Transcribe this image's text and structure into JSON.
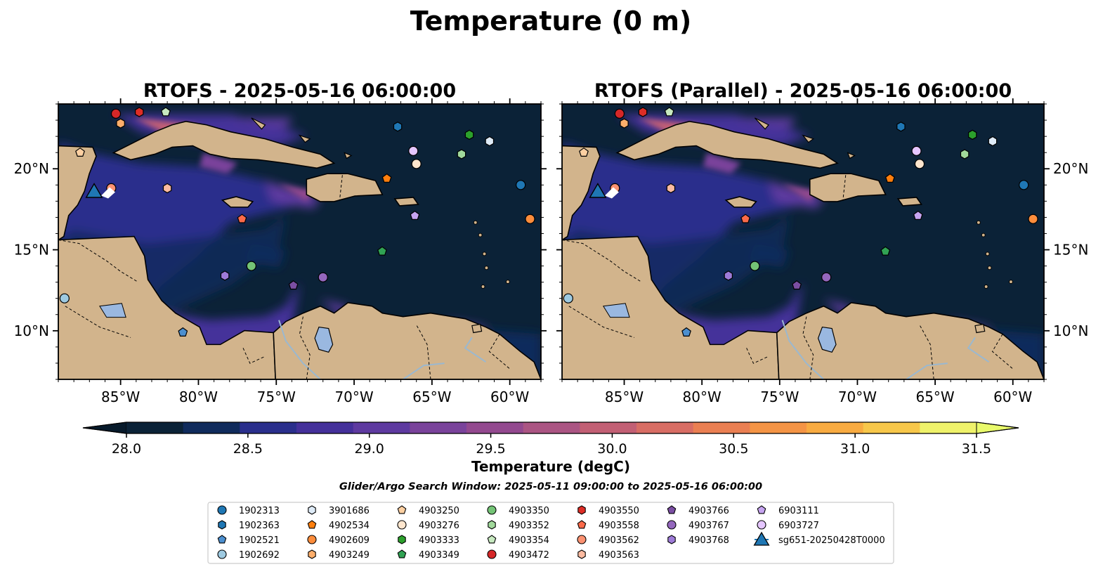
{
  "figure": {
    "suptitle": "Temperature (0 m)",
    "search_window": "Glider/Argo Search Window: 2025-05-11 09:00:00 to 2025-05-16 06:00:00"
  },
  "chart_data": [
    {
      "type": "heatmap",
      "title": "RTOFS - 2025-05-16 06:00:00",
      "x_range": [
        -89,
        -58
      ],
      "y_range": [
        7,
        24
      ],
      "x_ticks": [
        -85,
        -80,
        -75,
        -70,
        -65,
        -60
      ],
      "x_tick_labels": [
        "85°W",
        "80°W",
        "75°W",
        "70°W",
        "65°W",
        "60°W"
      ],
      "y_ticks": [
        10,
        15,
        20
      ],
      "y_tick_labels": [
        "10°N",
        "15°N",
        "20°N"
      ],
      "y_labels_side": "left"
    },
    {
      "type": "heatmap",
      "title": "RTOFS (Parallel) - 2025-05-16 06:00:00",
      "x_range": [
        -89,
        -58
      ],
      "y_range": [
        7,
        24
      ],
      "x_ticks": [
        -85,
        -80,
        -75,
        -70,
        -65,
        -60
      ],
      "x_tick_labels": [
        "85°W",
        "80°W",
        "75°W",
        "70°W",
        "65°W",
        "60°W"
      ],
      "y_ticks": [
        10,
        15,
        20
      ],
      "y_tick_labels": [
        "10°N",
        "15°N",
        "20°N"
      ],
      "y_labels_side": "right"
    }
  ],
  "colorbar": {
    "label": "Temperature (degC)",
    "min": 28.0,
    "max": 31.5,
    "ticks": [
      28.0,
      28.5,
      29.0,
      29.5,
      30.0,
      30.5,
      31.0,
      31.5
    ],
    "tick_labels": [
      "28.0",
      "28.5",
      "29.0",
      "29.5",
      "30.0",
      "30.5",
      "31.0",
      "31.5"
    ],
    "colors": [
      "#0b2237",
      "#102b5c",
      "#2a2f8c",
      "#44309a",
      "#5e3aa0",
      "#7a439b",
      "#93498f",
      "#ab5583",
      "#c25f74",
      "#d86d64",
      "#ea7f52",
      "#f49445",
      "#f8ab41",
      "#f7c74a",
      "#eff26a"
    ],
    "extend_low_color": "#071a2b",
    "extend_high_color": "#e9fa6b"
  },
  "colors": {
    "land": "#d2b48c",
    "ocean_deep": "#0b2237",
    "lake": "#9ab8e0",
    "river": "#9ab8d0",
    "coast": "#000000"
  },
  "floats": [
    {
      "id": "1902313",
      "marker": "circle",
      "color": "#1f77b4",
      "lon": -59.3,
      "lat": 19.0
    },
    {
      "id": "1902363",
      "marker": "hexagon",
      "color": "#1f77b4",
      "lon": -67.2,
      "lat": 22.6
    },
    {
      "id": "1902521",
      "marker": "pentagon",
      "color": "#4c8fcf",
      "lon": -81.0,
      "lat": 9.9
    },
    {
      "id": "1902692",
      "marker": "circle",
      "color": "#9ecae1",
      "lon": -88.6,
      "lat": 12.0
    },
    {
      "id": "3901686",
      "marker": "hexagon",
      "color": "#deebf7",
      "lon": -61.3,
      "lat": 21.7
    },
    {
      "id": "4902534",
      "marker": "pentagon",
      "color": "#ff7f0e",
      "lon": -67.9,
      "lat": 19.4
    },
    {
      "id": "4902609",
      "marker": "circle",
      "color": "#fd8d3c",
      "lon": -58.7,
      "lat": 16.9
    },
    {
      "id": "4903249",
      "marker": "hexagon",
      "color": "#fdae6b",
      "lon": -85.0,
      "lat": 22.8
    },
    {
      "id": "4903250",
      "marker": "pentagon",
      "color": "#fdd0a2",
      "lon": -87.6,
      "lat": 21.0
    },
    {
      "id": "4903276",
      "marker": "circle",
      "color": "#fee6ce",
      "lon": -66.0,
      "lat": 20.3
    },
    {
      "id": "4903333",
      "marker": "hexagon",
      "color": "#2ca02c",
      "lon": -62.6,
      "lat": 22.1
    },
    {
      "id": "4903349",
      "marker": "pentagon",
      "color": "#31a354",
      "lon": -68.2,
      "lat": 14.9
    },
    {
      "id": "4903350",
      "marker": "circle",
      "color": "#74c476",
      "lon": -76.6,
      "lat": 14.0
    },
    {
      "id": "4903352",
      "marker": "hexagon",
      "color": "#a1d99b",
      "lon": -63.1,
      "lat": 20.9
    },
    {
      "id": "4903354",
      "marker": "pentagon",
      "color": "#c7e9c0",
      "lon": -82.1,
      "lat": 23.5
    },
    {
      "id": "4903472",
      "marker": "circle",
      "color": "#d62728",
      "lon": -85.3,
      "lat": 23.4
    },
    {
      "id": "4903550",
      "marker": "hexagon",
      "color": "#de2d26",
      "lon": -83.8,
      "lat": 23.5
    },
    {
      "id": "4903558",
      "marker": "pentagon",
      "color": "#fb6a4a",
      "lon": -77.2,
      "lat": 16.9
    },
    {
      "id": "4903562",
      "marker": "circle",
      "color": "#fc9272",
      "lon": -85.6,
      "lat": 18.8
    },
    {
      "id": "4903563",
      "marker": "hexagon",
      "color": "#fcbba1",
      "lon": -82.0,
      "lat": 18.8
    },
    {
      "id": "4903766",
      "marker": "pentagon",
      "color": "#7b4ea3",
      "lon": -73.9,
      "lat": 12.8
    },
    {
      "id": "4903767",
      "marker": "circle",
      "color": "#9467bd",
      "lon": -72.0,
      "lat": 13.3
    },
    {
      "id": "4903768",
      "marker": "hexagon",
      "color": "#9e7bd8",
      "lon": -78.3,
      "lat": 13.4
    },
    {
      "id": "6903111",
      "marker": "pentagon",
      "color": "#c6a4f0",
      "lon": -66.1,
      "lat": 17.1
    },
    {
      "id": "6903727",
      "marker": "circle",
      "color": "#e5c6ff",
      "lon": -66.2,
      "lat": 21.1
    }
  ],
  "glider": {
    "id": "sg651-20250428T0000",
    "marker": "triangle",
    "color": "#1f77b4",
    "lon": -86.7,
    "lat": 18.6
  },
  "legend_order": [
    "1902313",
    "1902363",
    "1902521",
    "1902692",
    "3901686",
    "4902534",
    "4902609",
    "4903249",
    "4903250",
    "4903276",
    "4903333",
    "4903349",
    "4903350",
    "4903352",
    "4903354",
    "4903472",
    "4903550",
    "4903558",
    "4903562",
    "4903563",
    "4903766",
    "4903767",
    "4903768",
    "6903111",
    "6903727",
    "sg651-20250428T0000"
  ]
}
